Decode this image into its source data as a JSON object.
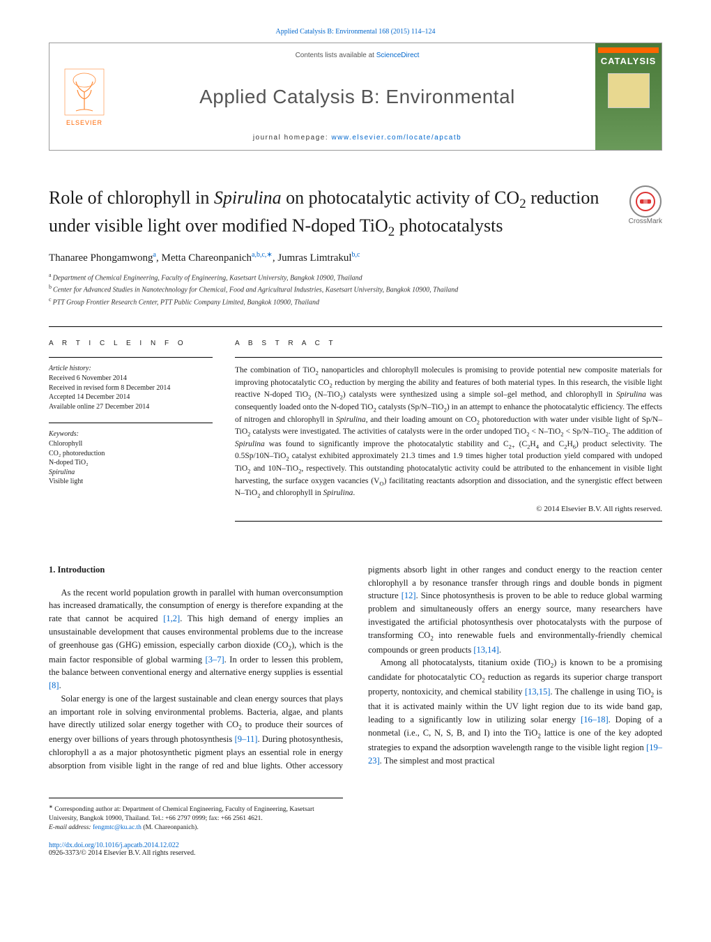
{
  "header": {
    "journal_ref": "Applied Catalysis B: Environmental 168 (2015) 114–124",
    "contents_prefix": "Contents lists available at ",
    "contents_link": "ScienceDirect",
    "journal_title": "Applied Catalysis B: Environmental",
    "homepage_prefix": "journal homepage: ",
    "homepage_url": "www.elsevier.com/locate/apcatb",
    "publisher_name": "ELSEVIER",
    "cover_word": "CATALYSIS",
    "crossmark_label": "CrossMark"
  },
  "article": {
    "title_html": "Role of chlorophyll in <i>Spirulina</i> on photocatalytic activity of CO<span class=\"sub\">2</span> reduction under visible light over modified N-doped TiO<span class=\"sub\">2</span> photocatalysts",
    "authors_html": "Thanaree Phongamwong<span class=\"aff-sup\">a</span>, Metta Chareonpanich<span class=\"aff-sup\">a,b,c,∗</span>, Jumras Limtrakul<span class=\"aff-sup\">b,c</span>",
    "affiliations": [
      {
        "letter": "a",
        "text": "Department of Chemical Engineering, Faculty of Engineering, Kasetsart University, Bangkok 10900, Thailand"
      },
      {
        "letter": "b",
        "text": "Center for Advanced Studies in Nanotechnology for Chemical, Food and Agricultural Industries, Kasetsart University, Bangkok 10900, Thailand"
      },
      {
        "letter": "c",
        "text": "PTT Group Frontier Research Center, PTT Public Company Limited, Bangkok 10900, Thailand"
      }
    ]
  },
  "meta": {
    "info_heading": "a r t i c l e   i n f o",
    "history_heading": "Article history:",
    "history": [
      "Received 6 November 2014",
      "Received in revised form 8 December 2014",
      "Accepted 14 December 2014",
      "Available online 27 December 2014"
    ],
    "keywords_heading": "Keywords:",
    "keywords": [
      "Chlorophyll",
      "CO₂ photoreduction",
      "N-doped TiO₂",
      "Spirulina",
      "Visible light"
    ]
  },
  "abstract": {
    "heading": "a b s t r a c t",
    "body_html": "The combination of TiO<span class=\"sub\">2</span> nanoparticles and chlorophyll molecules is promising to provide potential new composite materials for improving photocatalytic CO<span class=\"sub\">2</span> reduction by merging the ability and features of both material types. In this research, the visible light reactive N-doped TiO<span class=\"sub\">2</span> (N–TiO<span class=\"sub\">2</span>) catalysts were synthesized using a simple sol–gel method, and chlorophyll in <i>Spirulina</i> was consequently loaded onto the N-doped TiO<span class=\"sub\">2</span> catalysts (Sp/N–TiO<span class=\"sub\">2</span>) in an attempt to enhance the photocatalytic efficiency. The effects of nitrogen and chlorophyll in <i>Spirulina</i>, and their loading amount on CO<span class=\"sub\">2</span> photoreduction with water under visible light of Sp/N–TiO<span class=\"sub\">2</span> catalysts were investigated. The activities of catalysts were in the order undoped TiO<span class=\"sub\">2</span> &lt; N–TiO<span class=\"sub\">2</span> &lt; Sp/N–TiO<span class=\"sub\">2</span>. The addition of <i>Spirulina</i> was found to significantly improve the photocatalytic stability and C<span class=\"sub\">2+</span> (C<span class=\"sub\">2</span>H<span class=\"sub\">4</span> and C<span class=\"sub\">2</span>H<span class=\"sub\">6</span>) product selectivity. The 0.5Sp/10N–TiO<span class=\"sub\">2</span> catalyst exhibited approximately 21.3 times and 1.9 times higher total production yield compared with undoped TiO<span class=\"sub\">2</span> and 10N–TiO<span class=\"sub\">2</span>, respectively. This outstanding photocatalytic activity could be attributed to the enhancement in visible light harvesting, the surface oxygen vacancies (V<span class=\"sub\">O</span>) facilitating reactants adsorption and dissociation, and the synergistic effect between N–TiO<span class=\"sub\">2</span> and chlorophyll in <i>Spirulina</i>.",
    "copyright": "© 2014 Elsevier B.V. All rights reserved."
  },
  "body": {
    "section1_heading": "1. Introduction",
    "p1_html": "As the recent world population growth in parallel with human overconsumption has increased dramatically, the consumption of energy is therefore expanding at the rate that cannot be acquired <span class=\"ref-link\">[1,2]</span>. This high demand of energy implies an unsustainable development that causes environmental problems due to the increase of greenhouse gas (GHG) emission, especially carbon dioxide (CO<span class=\"sub\">2</span>), which is the main factor responsible of global warming <span class=\"ref-link\">[3–7]</span>. In order to lessen this problem, the balance between conventional energy and alternative energy supplies is essential <span class=\"ref-link\">[8]</span>.",
    "p2_html": "Solar energy is one of the largest sustainable and clean energy sources that plays an important role in solving environmental problems. Bacteria, algae, and plants have directly utilized solar energy together with CO<span class=\"sub\">2</span> to produce their sources of energy over billions of years through photosynthesis <span class=\"ref-link\">[9–11]</span>. During photosynthesis, chlorophyll a as a major photosynthetic pigment plays an essential role in energy absorption from visible light in the range of red and blue lights. Other accessory pigments absorb light in other ranges and conduct energy to the reaction center chlorophyll a by resonance transfer through rings and double bonds in pigment structure <span class=\"ref-link\">[12]</span>. Since photosynthesis is proven to be able to reduce global warming problem and simultaneously offers an energy source, many researchers have investigated the artificial photosynthesis over photocatalysts with the purpose of transforming CO<span class=\"sub\">2</span> into renewable fuels and environmentally-friendly chemical compounds or green products <span class=\"ref-link\">[13,14]</span>.",
    "p3_html": "Among all photocatalysts, titanium oxide (TiO<span class=\"sub\">2</span>) is known to be a promising candidate for photocatalytic CO<span class=\"sub\">2</span> reduction as regards its superior charge transport property, nontoxicity, and chemical stability <span class=\"ref-link\">[13,15]</span>. The challenge in using TiO<span class=\"sub\">2</span> is that it is activated mainly within the UV light region due to its wide band gap, leading to a significantly low in utilizing solar energy <span class=\"ref-link\">[16–18]</span>. Doping of a nonmetal (i.e., C, N, S, B, and I) into the TiO<span class=\"sub\">2</span> lattice is one of the key adopted strategies to expand the adsorption wavelength range to the visible light region <span class=\"ref-link\">[19–23]</span>. The simplest and most practical"
  },
  "footnotes": {
    "corr_html": "Corresponding author at: Department of Chemical Engineering, Faculty of Engineering, Kasetsart University, Bangkok 10900, Thailand. Tel.: +66 2797 0999; fax: +66 2561 4621.",
    "email_prefix": "E-mail address: ",
    "email": "fengmtc@ku.ac.th",
    "email_suffix": " (M. Chareonpanich).",
    "doi": "http://dx.doi.org/10.1016/j.apcatb.2014.12.022",
    "issn_line": "0926-3373/© 2014 Elsevier B.V. All rights reserved."
  },
  "colors": {
    "link": "#0066cc",
    "publisher_orange": "#ff6600",
    "cover_green": "#5a8a4a",
    "text": "#1a1a1a"
  }
}
